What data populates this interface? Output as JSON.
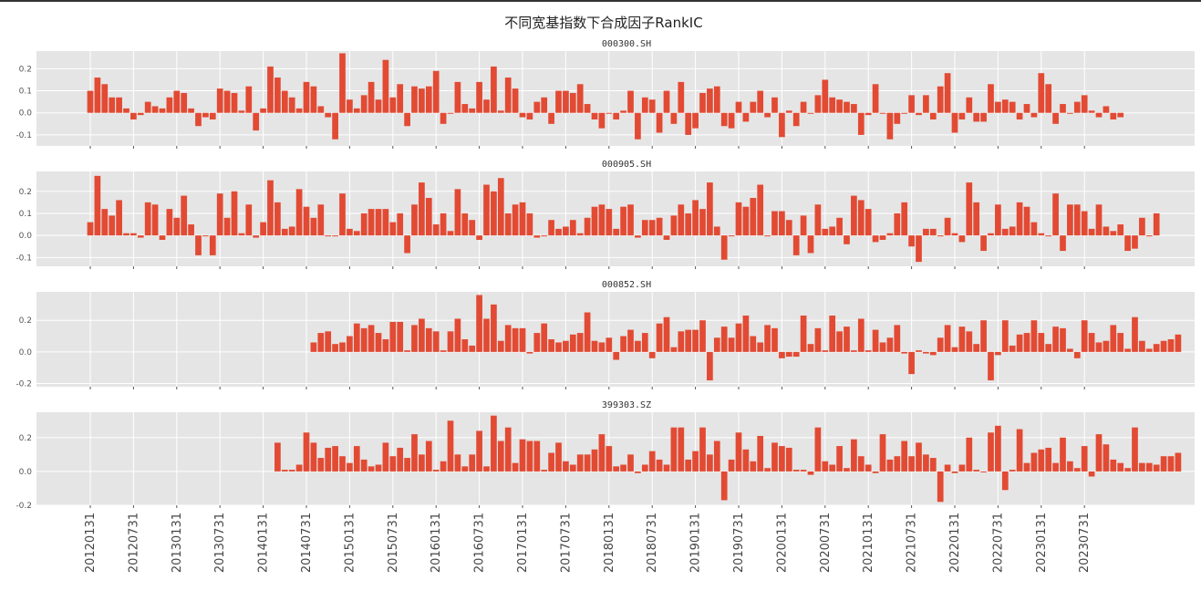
{
  "chart_data": {
    "type": "bar",
    "title": "不同宽基指数下合成因子RankIC",
    "bar_color": "#e24a33",
    "background_color": "#e5e5e5",
    "grid": true,
    "x_start": "2012-01",
    "x_end": "2023-12",
    "frequency": "monthly",
    "x_tick_labels": [
      "20120131",
      "20120731",
      "20130131",
      "20130731",
      "20140131",
      "20140731",
      "20150131",
      "20150731",
      "20160131",
      "20160731",
      "20170131",
      "20170731",
      "20180131",
      "20180731",
      "20190131",
      "20190731",
      "20200131",
      "20200731",
      "20210131",
      "20210731",
      "20220131",
      "20220731",
      "20230131",
      "20230731"
    ],
    "panels": [
      {
        "name": "000300.SH",
        "ylim": [
          -0.15,
          0.28
        ],
        "yticks": [
          -0.1,
          0.0,
          0.1,
          0.2
        ],
        "values": [
          0.1,
          0.16,
          0.13,
          0.07,
          0.07,
          0.02,
          -0.03,
          -0.01,
          0.05,
          0.03,
          0.02,
          0.07,
          0.1,
          0.09,
          0.02,
          -0.06,
          -0.02,
          -0.03,
          0.11,
          0.1,
          0.09,
          0.01,
          0.12,
          -0.08,
          0.02,
          0.21,
          0.16,
          0.1,
          0.07,
          0.02,
          0.14,
          0.12,
          0.03,
          -0.02,
          -0.12,
          0.27,
          0.06,
          0.02,
          0.08,
          0.14,
          0.06,
          0.24,
          0.07,
          0.13,
          -0.06,
          0.12,
          0.11,
          0.12,
          0.19,
          -0.05,
          0.0,
          0.14,
          0.04,
          0.02,
          0.14,
          0.06,
          0.21,
          0.01,
          0.16,
          0.11,
          -0.02,
          -0.03,
          0.05,
          0.07,
          -0.05,
          0.1,
          0.1,
          0.09,
          0.13,
          0.04,
          -0.03,
          -0.07,
          0.0,
          -0.03,
          0.01,
          0.1,
          -0.12,
          0.07,
          0.06,
          -0.09,
          0.1,
          -0.05,
          0.14,
          -0.1,
          -0.07,
          0.09,
          0.11,
          0.12,
          -0.06,
          -0.07,
          0.05,
          -0.04,
          0.05,
          0.1,
          -0.02,
          0.07,
          -0.11,
          0.01,
          -0.06,
          0.05,
          0.0,
          0.08,
          0.15,
          0.07,
          0.06,
          0.05,
          0.04,
          -0.1,
          -0.01,
          0.13,
          0.0,
          -0.12,
          -0.05,
          0.0,
          0.08,
          -0.01,
          0.08,
          -0.03,
          0.12,
          0.18,
          -0.09,
          -0.03,
          0.07,
          -0.04,
          -0.04,
          0.13,
          0.05,
          0.06,
          0.05,
          -0.03,
          0.04,
          -0.02,
          0.18,
          0.13,
          -0.05,
          0.04,
          0.0,
          0.05,
          0.08,
          0.01,
          -0.02,
          0.03,
          -0.03,
          -0.02
        ]
      },
      {
        "name": "000905.SH",
        "ylim": [
          -0.14,
          0.29
        ],
        "yticks": [
          -0.1,
          0.0,
          0.1,
          0.2
        ],
        "values": [
          0.06,
          0.27,
          0.12,
          0.09,
          0.16,
          0.01,
          0.01,
          -0.01,
          0.15,
          0.14,
          -0.02,
          0.12,
          0.08,
          0.18,
          0.05,
          -0.09,
          0.0,
          -0.09,
          0.19,
          0.08,
          0.2,
          0.01,
          0.14,
          -0.01,
          0.06,
          0.25,
          0.15,
          0.03,
          0.04,
          0.21,
          0.13,
          0.08,
          0.14,
          0.0,
          0.0,
          0.19,
          0.03,
          0.02,
          0.1,
          0.12,
          0.12,
          0.12,
          0.06,
          0.1,
          -0.08,
          0.14,
          0.24,
          0.17,
          0.05,
          0.1,
          0.02,
          0.21,
          0.1,
          0.07,
          -0.02,
          0.23,
          0.2,
          0.26,
          0.1,
          0.14,
          0.15,
          0.1,
          -0.01,
          0.0,
          0.07,
          0.03,
          0.04,
          0.07,
          0.01,
          0.08,
          0.13,
          0.14,
          0.12,
          0.03,
          0.13,
          0.14,
          -0.01,
          0.07,
          0.07,
          0.08,
          -0.02,
          0.09,
          0.14,
          0.1,
          0.16,
          0.12,
          0.24,
          0.04,
          -0.11,
          0.0,
          0.15,
          0.13,
          0.17,
          0.23,
          0.0,
          0.11,
          0.11,
          0.07,
          -0.09,
          0.09,
          -0.08,
          0.14,
          0.03,
          0.04,
          0.08,
          -0.04,
          0.18,
          0.16,
          0.12,
          -0.03,
          -0.02,
          0.01,
          0.1,
          0.15,
          -0.05,
          -0.12,
          0.03,
          0.03,
          0.0,
          0.08,
          0.01,
          -0.03,
          0.24,
          0.15,
          -0.07,
          0.01,
          0.14,
          0.03,
          0.04,
          0.15,
          0.13,
          0.06,
          0.01,
          0.0,
          0.19,
          -0.07,
          0.14,
          0.14,
          0.11,
          0.03,
          0.14,
          0.04,
          0.02,
          0.05,
          -0.07,
          -0.06,
          0.08,
          0.0,
          0.1
        ]
      },
      {
        "name": "000852.SH",
        "ylim": [
          -0.22,
          0.38
        ],
        "yticks": [
          -0.2,
          0.0,
          0.2
        ],
        "values": [
          null,
          null,
          null,
          null,
          null,
          null,
          null,
          null,
          null,
          null,
          null,
          null,
          null,
          null,
          null,
          null,
          null,
          null,
          null,
          null,
          null,
          null,
          null,
          null,
          null,
          null,
          null,
          null,
          null,
          null,
          null,
          0.06,
          0.12,
          0.13,
          0.05,
          0.06,
          0.1,
          0.18,
          0.15,
          0.17,
          0.12,
          0.08,
          0.19,
          0.19,
          0.01,
          0.17,
          0.21,
          0.15,
          0.13,
          0.01,
          0.13,
          0.21,
          0.08,
          0.04,
          0.36,
          0.21,
          0.3,
          0.07,
          0.17,
          0.15,
          0.15,
          -0.01,
          0.12,
          0.18,
          0.08,
          0.06,
          0.07,
          0.11,
          0.12,
          0.25,
          0.07,
          0.06,
          0.09,
          -0.05,
          0.1,
          0.14,
          0.07,
          0.12,
          -0.04,
          0.18,
          0.22,
          0.03,
          0.13,
          0.14,
          0.14,
          0.2,
          -0.18,
          0.09,
          0.16,
          0.09,
          0.18,
          0.23,
          0.1,
          0.06,
          0.17,
          0.15,
          -0.04,
          -0.03,
          -0.03,
          0.23,
          0.05,
          0.15,
          0.01,
          0.23,
          0.13,
          0.16,
          0.01,
          0.21,
          0.01,
          0.14,
          0.06,
          0.09,
          0.17,
          -0.01,
          -0.14,
          0.01,
          -0.01,
          -0.02,
          0.09,
          0.17,
          0.03,
          0.16,
          0.13,
          0.05,
          0.2,
          -0.18,
          -0.02,
          0.2,
          0.04,
          0.11,
          0.12,
          0.2,
          0.12,
          0.05,
          0.16,
          0.15,
          0.02,
          -0.04,
          0.2,
          0.12,
          0.06,
          0.07,
          0.17,
          0.12,
          0.02,
          0.22,
          0.07,
          0.02,
          0.05,
          0.07,
          0.08,
          0.11
        ]
      },
      {
        "name": "399303.SZ",
        "ylim": [
          -0.2,
          0.35
        ],
        "yticks": [
          -0.2,
          0.0,
          0.2
        ],
        "values": [
          null,
          null,
          null,
          null,
          null,
          null,
          null,
          null,
          null,
          null,
          null,
          null,
          null,
          null,
          null,
          null,
          null,
          null,
          null,
          null,
          null,
          null,
          null,
          null,
          null,
          null,
          0.17,
          0.01,
          0.01,
          0.04,
          0.23,
          0.17,
          0.08,
          0.14,
          0.15,
          0.09,
          0.05,
          0.15,
          0.07,
          0.03,
          0.04,
          0.17,
          0.09,
          0.14,
          0.08,
          0.22,
          0.1,
          0.18,
          0.01,
          0.06,
          0.3,
          0.1,
          0.03,
          0.1,
          0.24,
          0.03,
          0.33,
          0.18,
          0.26,
          0.05,
          0.19,
          0.18,
          0.18,
          0.01,
          0.11,
          0.17,
          0.06,
          0.04,
          0.1,
          0.1,
          0.13,
          0.22,
          0.15,
          0.03,
          0.04,
          0.1,
          -0.01,
          0.04,
          0.12,
          0.07,
          0.04,
          0.26,
          0.26,
          0.07,
          0.12,
          0.26,
          0.1,
          0.18,
          -0.17,
          0.07,
          0.23,
          0.13,
          0.06,
          0.21,
          0.02,
          0.17,
          0.15,
          0.14,
          0.01,
          0.01,
          -0.02,
          0.26,
          0.06,
          0.04,
          0.15,
          0.02,
          0.19,
          0.09,
          0.04,
          -0.01,
          0.22,
          0.07,
          0.09,
          0.18,
          0.09,
          0.17,
          0.1,
          0.08,
          -0.18,
          0.04,
          -0.01,
          0.04,
          0.2,
          0.01,
          0.0,
          0.23,
          0.27,
          -0.11,
          0.01,
          0.25,
          0.05,
          0.11,
          0.13,
          0.14,
          0.05,
          0.2,
          0.06,
          0.02,
          0.15,
          -0.03,
          0.22,
          0.16,
          0.07,
          0.05,
          0.02,
          0.26,
          0.05,
          0.05,
          0.04,
          0.09,
          0.09,
          0.11
        ]
      }
    ]
  }
}
